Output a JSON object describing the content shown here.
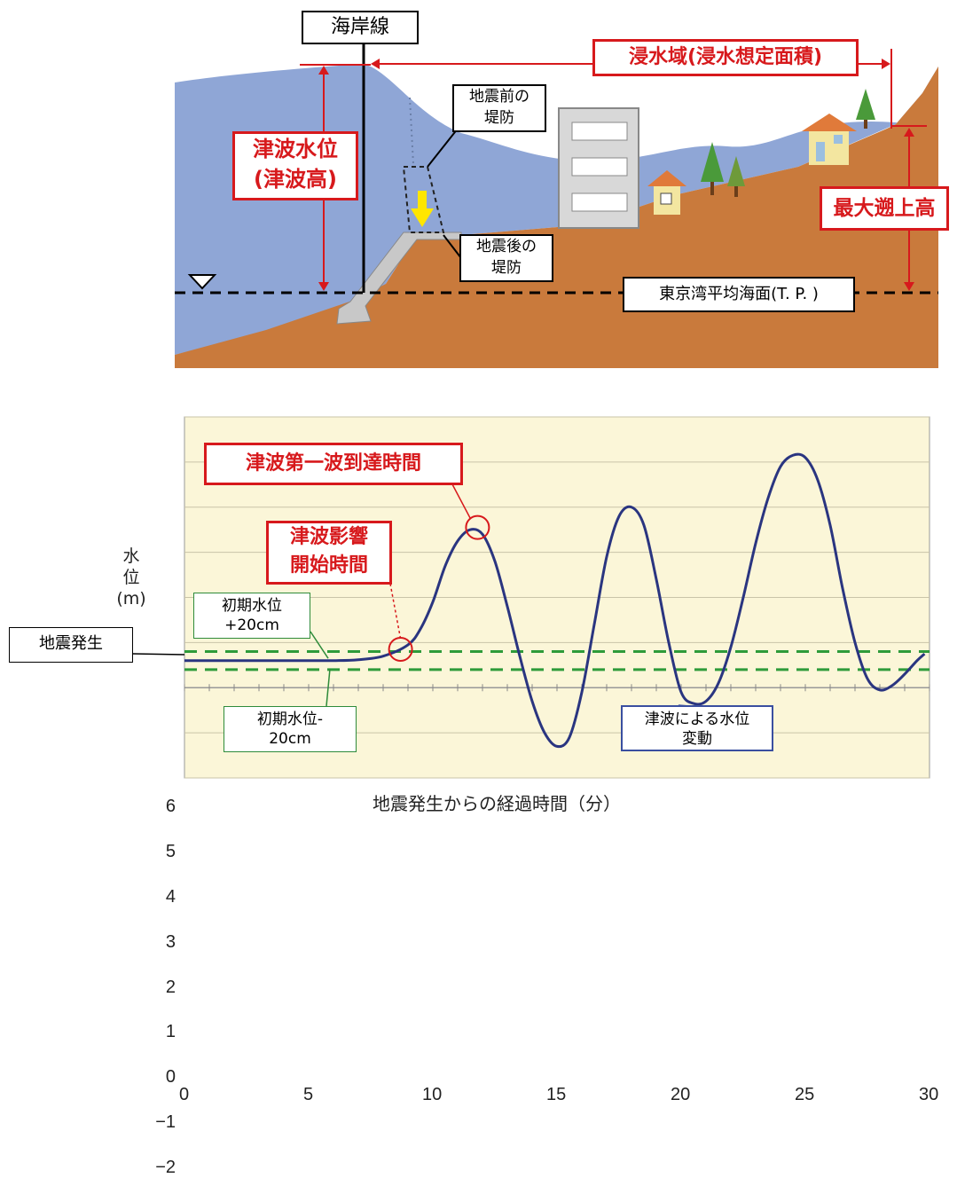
{
  "diagram": {
    "coastline_label": "海岸線",
    "inundation_label": "浸水域(浸水想定面積)",
    "tsunami_level_label_1": "津波水位",
    "tsunami_level_label_2": "(津波高)",
    "runup_label": "最大遡上高",
    "seawall_before_1": "地震前の",
    "seawall_before_2": "堤防",
    "seawall_after_1": "地震後の",
    "seawall_after_2": "堤防",
    "mean_sea_level_label": "東京湾平均海面(T. P. )",
    "colors": {
      "sea": "#8fa6d6",
      "land": "#c97a3c",
      "red": "#d7191c"
    }
  },
  "chart_data": {
    "type": "line",
    "xlabel": "地震発生からの経過時間（分）",
    "ylabel_chars": [
      "水",
      "位"
    ],
    "ylabel_unit": "(m)",
    "xlim": [
      0,
      30
    ],
    "ylim": [
      -2,
      6
    ],
    "xticks": [
      0,
      5,
      10,
      15,
      20,
      25,
      30
    ],
    "yticks": [
      -2,
      -1,
      0,
      1,
      2,
      3,
      4,
      5,
      6
    ],
    "series": [
      {
        "x": [
          0,
          2,
          4,
          6,
          7,
          8,
          9,
          9.5,
          10,
          10.5,
          11,
          11.5,
          12,
          12.5,
          13,
          13.5,
          14,
          14.5,
          15,
          15.5,
          16,
          16.5,
          17,
          17.5,
          18,
          18.5,
          19,
          19.5,
          20,
          20.5,
          21,
          21.5,
          22,
          22.5,
          23,
          23.5,
          24,
          24.5,
          25,
          25.5,
          26,
          26.5,
          27,
          27.5,
          28,
          28.5,
          29,
          29.5,
          29.8
        ],
        "y": [
          0.6,
          0.6,
          0.6,
          0.6,
          0.62,
          0.7,
          0.95,
          1.3,
          1.9,
          2.7,
          3.25,
          3.5,
          3.4,
          2.8,
          1.8,
          0.7,
          -0.3,
          -1.0,
          -1.3,
          -1.1,
          -0.1,
          1.4,
          2.9,
          3.8,
          4.0,
          3.6,
          2.4,
          1.0,
          -0.1,
          -0.35,
          -0.3,
          0.1,
          0.9,
          2.0,
          3.2,
          4.2,
          4.9,
          5.15,
          5.1,
          4.6,
          3.6,
          2.2,
          1.0,
          0.2,
          -0.05,
          0.05,
          0.3,
          0.6,
          0.75
        ]
      }
    ],
    "reference_lines": [
      0.8,
      0.4
    ],
    "annotations": {
      "earthquake": "地震発生",
      "initial_plus_1": "初期水位",
      "initial_plus_2": "+20cm",
      "initial_minus_1": "初期水位-",
      "initial_minus_2": "20cm",
      "impact_start_1": "津波影響",
      "impact_start_2": "開始時間",
      "first_wave": "津波第一波到達時間",
      "variation_1": "津波による水位",
      "variation_2": "変動"
    },
    "markers": [
      {
        "name": "impact-start",
        "x": 8.7,
        "y": 0.85
      },
      {
        "name": "first-wave",
        "x": 11.8,
        "y": 3.55
      }
    ],
    "colors": {
      "background": "#fbf6d8",
      "line": "#2a3580",
      "reference": "#2e9b3a",
      "marker": "#d7191c"
    }
  }
}
